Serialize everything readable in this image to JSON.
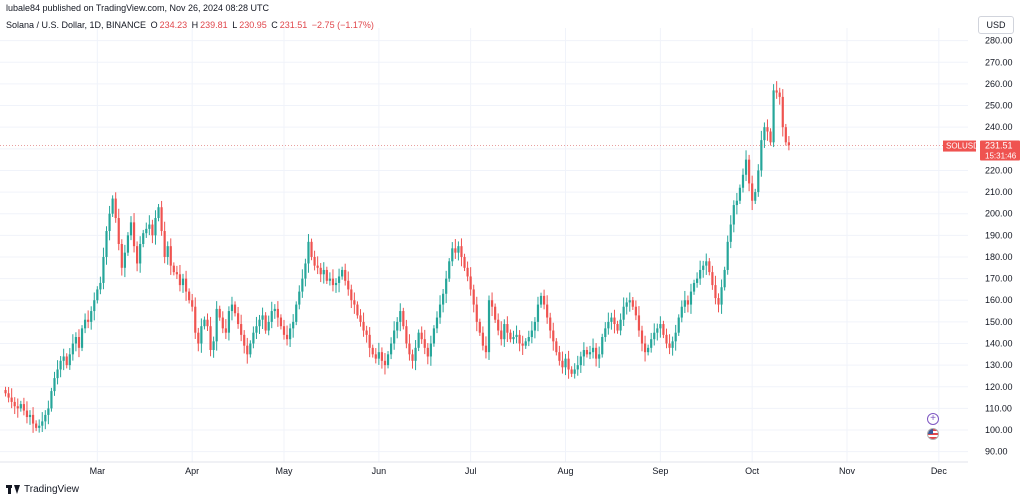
{
  "header": {
    "published": "lubale84 published on TradingView.com, Nov 26, 2024 08:28 UTC",
    "symbol": "Solana / U.S. Dollar, 1D, BINANCE",
    "ohlc": {
      "open_label": "O",
      "open": "234.23",
      "high_label": "H",
      "high": "239.81",
      "low_label": "L",
      "low": "230.95",
      "close_label": "C",
      "close": "231.51",
      "change": "−2.75 (−1.17%)"
    },
    "currency": "USD"
  },
  "price_tag": {
    "ticker": "SOLUSD",
    "price": "231.51",
    "countdown": "15:31:46"
  },
  "footer": {
    "brand": "TradingView"
  },
  "colors": {
    "up": "#26a69a",
    "down": "#ef5350",
    "grid": "#f0f3fa",
    "text": "#131722"
  },
  "icons": [
    "plus-circle-icon",
    "us-flag-icon",
    "tradingview-logo-icon"
  ],
  "chart_data": {
    "type": "candlestick",
    "yaxis_ticks": [
      "90.00",
      "100.00",
      "110.00",
      "120.00",
      "130.00",
      "140.00",
      "150.00",
      "160.00",
      "170.00",
      "180.00",
      "190.00",
      "200.00",
      "210.00",
      "220.00",
      "230.00",
      "240.00",
      "250.00",
      "260.00",
      "270.00",
      "280.00"
    ],
    "ylim": [
      88,
      284
    ],
    "xaxis_ticks": [
      "Mar",
      "Apr",
      "May",
      "Jun",
      "Jul",
      "Aug",
      "Sep",
      "Oct",
      "Nov",
      "Dec"
    ],
    "xaxis_tick_index": [
      30,
      61,
      91,
      122,
      152,
      183,
      214,
      244,
      275,
      305
    ],
    "closes": [
      117,
      115,
      113,
      111,
      110,
      112,
      109,
      106,
      107,
      103,
      101,
      102,
      104,
      107,
      110,
      118,
      124,
      128,
      132,
      134,
      130,
      135,
      140,
      143,
      138,
      147,
      151,
      150,
      155,
      160,
      165,
      168,
      180,
      192,
      200,
      207,
      198,
      186,
      175,
      182,
      190,
      196,
      185,
      177,
      186,
      191,
      193,
      195,
      190,
      198,
      203,
      192,
      180,
      185,
      176,
      173,
      172,
      167,
      170,
      164,
      160,
      157,
      145,
      140,
      148,
      151,
      148,
      137,
      141,
      156,
      152,
      147,
      145,
      155,
      158,
      154,
      149,
      144,
      139,
      135,
      140,
      145,
      148,
      151,
      153,
      146,
      150,
      155,
      156,
      152,
      148,
      144,
      142,
      147,
      150,
      158,
      164,
      170,
      177,
      187,
      180,
      176,
      175,
      172,
      174,
      169,
      170,
      167,
      168,
      171,
      174,
      169,
      165,
      160,
      158,
      153,
      150,
      146,
      144,
      138,
      135,
      133,
      136,
      132,
      130,
      135,
      140,
      146,
      150,
      155,
      148,
      140,
      135,
      132,
      138,
      145,
      142,
      138,
      134,
      140,
      147,
      152,
      158,
      163,
      170,
      178,
      184,
      182,
      185,
      180,
      175,
      171,
      165,
      158,
      150,
      145,
      139,
      136,
      160,
      157,
      151,
      146,
      142,
      149,
      145,
      142,
      143,
      144,
      140,
      139,
      141,
      143,
      146,
      150,
      158,
      162,
      158,
      152,
      146,
      141,
      136,
      132,
      129,
      133,
      128,
      126,
      128,
      130,
      134,
      137,
      135,
      136,
      138,
      133,
      135,
      143,
      147,
      150,
      152,
      149,
      146,
      151,
      157,
      159,
      160,
      157,
      153,
      146,
      140,
      136,
      138,
      142,
      145,
      147,
      149,
      144,
      140,
      138,
      141,
      145,
      152,
      157,
      160,
      158,
      164,
      168,
      170,
      174,
      176,
      178,
      173,
      167,
      161,
      158,
      166,
      174,
      187,
      195,
      204,
      206,
      212,
      218,
      225,
      214,
      206,
      210,
      220,
      234,
      240,
      238,
      233,
      257,
      256,
      254,
      240,
      233,
      231.51
    ],
    "last_close": 231.51
  }
}
